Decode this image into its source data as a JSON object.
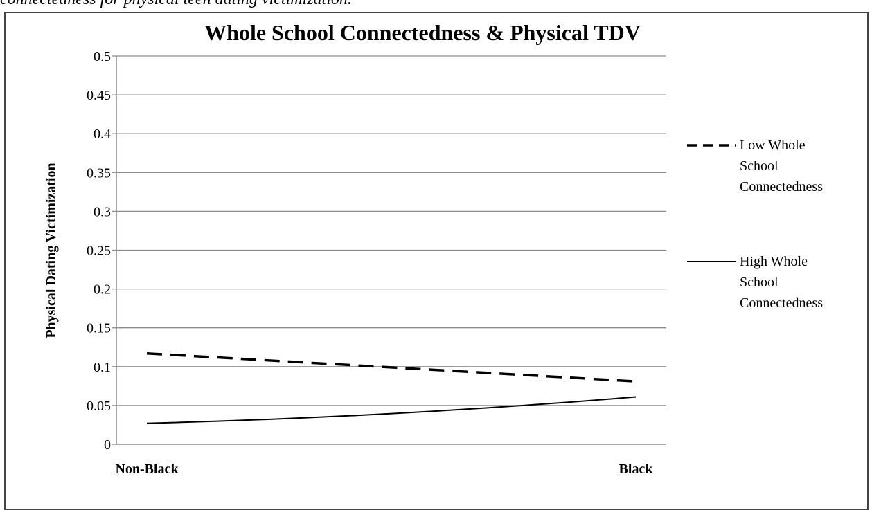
{
  "caption": "connectedness for physical teen dating victimization.",
  "chart_data": {
    "type": "line",
    "title": "Whole School Connectedness & Physical TDV",
    "xlabel": "",
    "ylabel": "Physical Dating Victimization",
    "categories": [
      "Non-Black",
      "Black"
    ],
    "ylim": [
      0,
      0.5
    ],
    "yticks": [
      "0",
      "0.05",
      "0.1",
      "0.15",
      "0.2",
      "0.25",
      "0.3",
      "0.35",
      "0.4",
      "0.45",
      "0.5"
    ],
    "grid": true,
    "legend_position": "right",
    "series": [
      {
        "name": "Low Whole School Connectedness",
        "legend_lines": [
          "Low Whole",
          "School",
          "Connectedness"
        ],
        "style": "dashed",
        "color": "#000000",
        "values": [
          0.117,
          0.081
        ]
      },
      {
        "name": "High Whole School Connectedness",
        "legend_lines": [
          "High Whole",
          "School",
          "Connectedness"
        ],
        "style": "solid",
        "color": "#000000",
        "values": [
          0.027,
          0.061
        ]
      }
    ]
  }
}
